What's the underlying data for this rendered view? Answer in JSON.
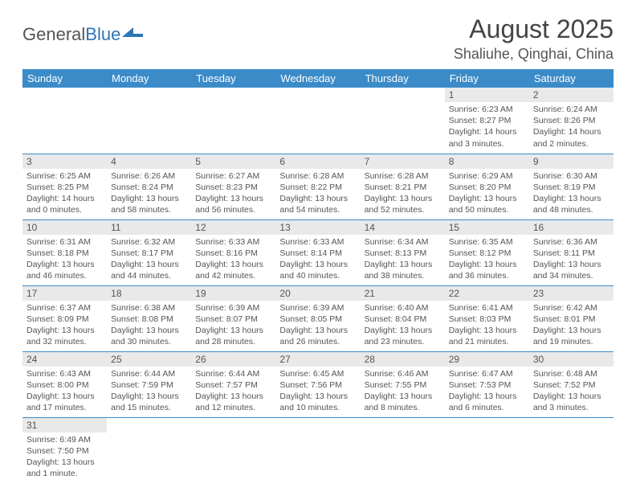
{
  "logo": {
    "part1": "General",
    "part2": "Blue"
  },
  "title": "August 2025",
  "location": "Shaliuhe, Qinghai, China",
  "colors": {
    "header_bg": "#3b8bc9",
    "header_text": "#ffffff",
    "daynum_bg": "#e9e9e9",
    "border": "#3b8bc9",
    "text": "#555555",
    "background": "#ffffff"
  },
  "layout": {
    "columns": 7,
    "rows": 6,
    "week_start": "Sunday"
  },
  "day_headers": [
    "Sunday",
    "Monday",
    "Tuesday",
    "Wednesday",
    "Thursday",
    "Friday",
    "Saturday"
  ],
  "days": [
    null,
    null,
    null,
    null,
    null,
    {
      "n": "1",
      "sr": "6:23 AM",
      "ss": "8:27 PM",
      "dl": "14 hours and 3 minutes."
    },
    {
      "n": "2",
      "sr": "6:24 AM",
      "ss": "8:26 PM",
      "dl": "14 hours and 2 minutes."
    },
    {
      "n": "3",
      "sr": "6:25 AM",
      "ss": "8:25 PM",
      "dl": "14 hours and 0 minutes."
    },
    {
      "n": "4",
      "sr": "6:26 AM",
      "ss": "8:24 PM",
      "dl": "13 hours and 58 minutes."
    },
    {
      "n": "5",
      "sr": "6:27 AM",
      "ss": "8:23 PM",
      "dl": "13 hours and 56 minutes."
    },
    {
      "n": "6",
      "sr": "6:28 AM",
      "ss": "8:22 PM",
      "dl": "13 hours and 54 minutes."
    },
    {
      "n": "7",
      "sr": "6:28 AM",
      "ss": "8:21 PM",
      "dl": "13 hours and 52 minutes."
    },
    {
      "n": "8",
      "sr": "6:29 AM",
      "ss": "8:20 PM",
      "dl": "13 hours and 50 minutes."
    },
    {
      "n": "9",
      "sr": "6:30 AM",
      "ss": "8:19 PM",
      "dl": "13 hours and 48 minutes."
    },
    {
      "n": "10",
      "sr": "6:31 AM",
      "ss": "8:18 PM",
      "dl": "13 hours and 46 minutes."
    },
    {
      "n": "11",
      "sr": "6:32 AM",
      "ss": "8:17 PM",
      "dl": "13 hours and 44 minutes."
    },
    {
      "n": "12",
      "sr": "6:33 AM",
      "ss": "8:16 PM",
      "dl": "13 hours and 42 minutes."
    },
    {
      "n": "13",
      "sr": "6:33 AM",
      "ss": "8:14 PM",
      "dl": "13 hours and 40 minutes."
    },
    {
      "n": "14",
      "sr": "6:34 AM",
      "ss": "8:13 PM",
      "dl": "13 hours and 38 minutes."
    },
    {
      "n": "15",
      "sr": "6:35 AM",
      "ss": "8:12 PM",
      "dl": "13 hours and 36 minutes."
    },
    {
      "n": "16",
      "sr": "6:36 AM",
      "ss": "8:11 PM",
      "dl": "13 hours and 34 minutes."
    },
    {
      "n": "17",
      "sr": "6:37 AM",
      "ss": "8:09 PM",
      "dl": "13 hours and 32 minutes."
    },
    {
      "n": "18",
      "sr": "6:38 AM",
      "ss": "8:08 PM",
      "dl": "13 hours and 30 minutes."
    },
    {
      "n": "19",
      "sr": "6:39 AM",
      "ss": "8:07 PM",
      "dl": "13 hours and 28 minutes."
    },
    {
      "n": "20",
      "sr": "6:39 AM",
      "ss": "8:05 PM",
      "dl": "13 hours and 26 minutes."
    },
    {
      "n": "21",
      "sr": "6:40 AM",
      "ss": "8:04 PM",
      "dl": "13 hours and 23 minutes."
    },
    {
      "n": "22",
      "sr": "6:41 AM",
      "ss": "8:03 PM",
      "dl": "13 hours and 21 minutes."
    },
    {
      "n": "23",
      "sr": "6:42 AM",
      "ss": "8:01 PM",
      "dl": "13 hours and 19 minutes."
    },
    {
      "n": "24",
      "sr": "6:43 AM",
      "ss": "8:00 PM",
      "dl": "13 hours and 17 minutes."
    },
    {
      "n": "25",
      "sr": "6:44 AM",
      "ss": "7:59 PM",
      "dl": "13 hours and 15 minutes."
    },
    {
      "n": "26",
      "sr": "6:44 AM",
      "ss": "7:57 PM",
      "dl": "13 hours and 12 minutes."
    },
    {
      "n": "27",
      "sr": "6:45 AM",
      "ss": "7:56 PM",
      "dl": "13 hours and 10 minutes."
    },
    {
      "n": "28",
      "sr": "6:46 AM",
      "ss": "7:55 PM",
      "dl": "13 hours and 8 minutes."
    },
    {
      "n": "29",
      "sr": "6:47 AM",
      "ss": "7:53 PM",
      "dl": "13 hours and 6 minutes."
    },
    {
      "n": "30",
      "sr": "6:48 AM",
      "ss": "7:52 PM",
      "dl": "13 hours and 3 minutes."
    },
    {
      "n": "31",
      "sr": "6:49 AM",
      "ss": "7:50 PM",
      "dl": "13 hours and 1 minute."
    },
    null,
    null,
    null,
    null,
    null,
    null
  ],
  "labels": {
    "sunrise": "Sunrise: ",
    "sunset": "Sunset: ",
    "daylight": "Daylight: "
  }
}
